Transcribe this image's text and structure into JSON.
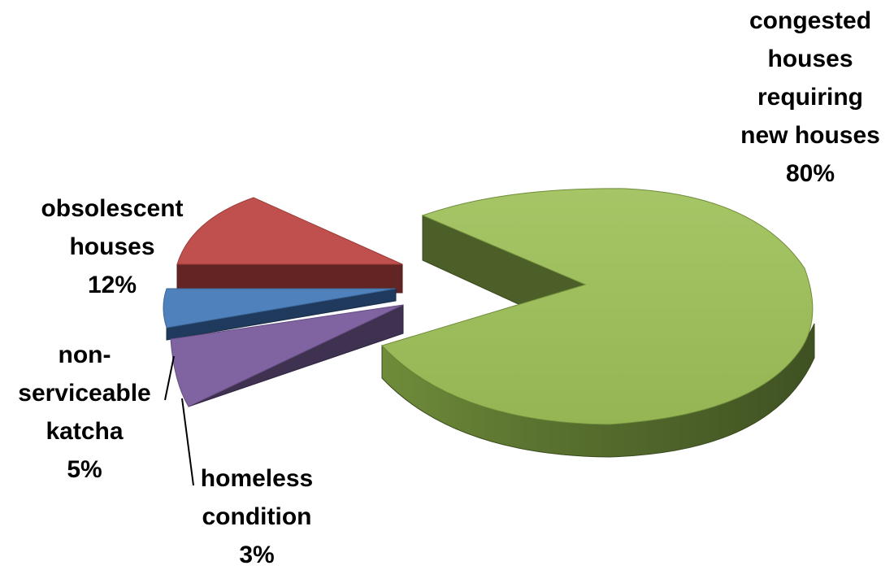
{
  "chart_data": {
    "type": "pie",
    "title": "",
    "slices": [
      {
        "label_lines": [
          "congested",
          "houses",
          "requiring",
          "new houses"
        ],
        "percent_label": "80%",
        "value": 80,
        "color": "#9bbb59"
      },
      {
        "label_lines": [
          "homeless",
          "condition"
        ],
        "percent_label": "3%",
        "value": 3,
        "color": "#8064a2"
      },
      {
        "label_lines": [
          "non-",
          "serviceable",
          "katcha"
        ],
        "percent_label": "5%",
        "value": 5,
        "color": "#4f81bd"
      },
      {
        "label_lines": [
          "obsolescent",
          "houses"
        ],
        "percent_label": "12%",
        "value": 12,
        "color": "#c0504d"
      }
    ],
    "exploded": true,
    "three_d": true,
    "legend": "none"
  }
}
